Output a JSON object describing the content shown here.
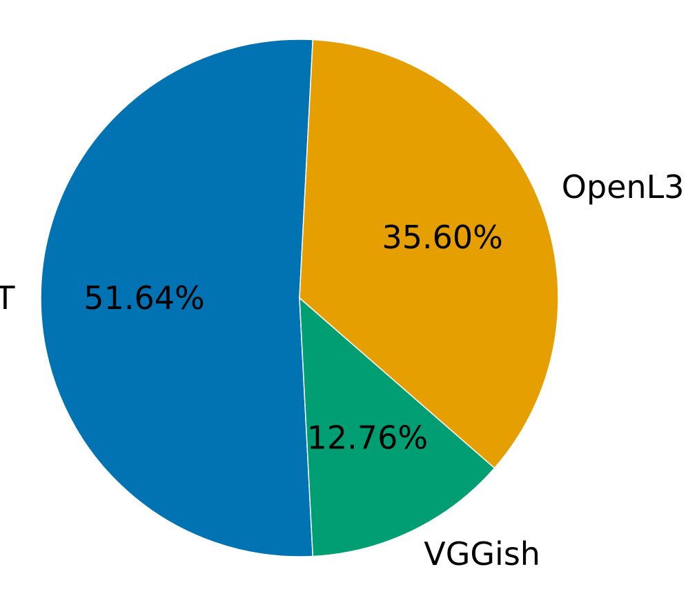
{
  "chart_data": {
    "type": "pie",
    "categories": [
      "PaSST",
      "OpenL3",
      "VGGish"
    ],
    "values": [
      51.64,
      35.6,
      12.76
    ],
    "value_labels": [
      "51.64%",
      "35.60%",
      "12.76%"
    ],
    "colors": [
      "#0173b2",
      "#e69f00",
      "#029e73"
    ],
    "title": "",
    "legend": "none"
  }
}
